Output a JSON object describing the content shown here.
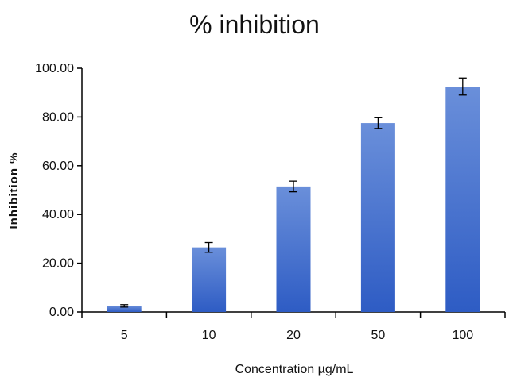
{
  "chart_data": {
    "type": "bar",
    "title": "% inhibition",
    "xlabel": "Concentration µg/mL",
    "ylabel": "Inhibition %",
    "categories": [
      "5",
      "10",
      "20",
      "50",
      "100"
    ],
    "values": [
      2.5,
      26.5,
      51.5,
      77.5,
      92.5
    ],
    "errors": [
      0.5,
      2.0,
      2.2,
      2.2,
      3.5
    ],
    "ylim": [
      0,
      100
    ],
    "yticks": [
      "0.00",
      "20.00",
      "40.00",
      "60.00",
      "80.00",
      "100.00"
    ],
    "grid": false,
    "colors": {
      "bar_top": "#6a8fda",
      "bar_bottom": "#2e5cc4",
      "axis": "#000000"
    }
  }
}
